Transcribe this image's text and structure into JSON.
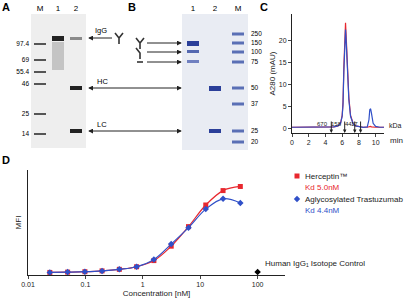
{
  "panels": {
    "A": {
      "label": "A",
      "lanes": [
        "M",
        "1",
        "2"
      ],
      "markers": [
        97.4,
        69,
        55.4,
        46,
        25,
        14
      ]
    },
    "B": {
      "label": "B",
      "lanes": [
        "1",
        "2",
        "M"
      ],
      "markers": [
        250,
        150,
        100,
        75,
        50,
        37,
        25,
        20
      ]
    }
  },
  "band_labels": [
    "IgG",
    "HC",
    "LC"
  ],
  "chart_data": [
    {
      "panel": "C",
      "type": "line",
      "xlabel": "min",
      "ylabel": "A280 (mAU)",
      "x": [
        0,
        1,
        2,
        3,
        4,
        5,
        5.5,
        5.8,
        6.0,
        6.1,
        6.2,
        6.3,
        6.4,
        6.5,
        6.6,
        6.8,
        7.0,
        7.3,
        7.6,
        8,
        8.5,
        9,
        9.2,
        9.3,
        9.4,
        9.5,
        9.7,
        10,
        10.5,
        11
      ],
      "series": [
        {
          "color": "#e8272e",
          "values": [
            0.3,
            0.3,
            0.4,
            0.3,
            0.3,
            0.4,
            0.6,
            1.2,
            3,
            6,
            14,
            22,
            24,
            20,
            14,
            7,
            3,
            1.2,
            0.6,
            0.4,
            0.3,
            0.3,
            0.4,
            0.5,
            0.5,
            0.4,
            0.3,
            0.3,
            0.3,
            0.3
          ]
        },
        {
          "color": "#3050c8",
          "values": [
            0.3,
            0.3,
            0.4,
            0.3,
            0.3,
            0.4,
            0.6,
            1.1,
            2.8,
            5.5,
            13,
            21,
            22.5,
            19,
            13.5,
            6.5,
            2.8,
            1.1,
            0.6,
            0.4,
            0.3,
            0.4,
            2,
            4.3,
            4.5,
            3.5,
            1.2,
            0.5,
            0.3,
            0.3
          ]
        }
      ],
      "xlim": [
        0,
        11
      ],
      "ylim": [
        -1,
        26
      ],
      "xticks": [
        0,
        2,
        4,
        6,
        8,
        10
      ],
      "yticks": [
        0,
        5,
        10,
        15,
        20
      ],
      "annotations": [
        {
          "text": "670",
          "x": 4.7
        },
        {
          "text": "158",
          "x": 6.3
        },
        {
          "text": "44",
          "x": 7.5
        },
        {
          "text": "17",
          "x": 8.2
        },
        {
          "text": "kDa"
        }
      ]
    },
    {
      "panel": "D",
      "type": "scatter",
      "xlabel": "Concentration [nM]",
      "ylabel": "MFI",
      "log": "x",
      "tick_labels": "x",
      "x": [
        0.024,
        0.049,
        0.098,
        0.195,
        0.39,
        0.78,
        1.56,
        3.125,
        6.25,
        12.5,
        25,
        50,
        100
      ],
      "series": [
        {
          "name": "Herceptin™",
          "type": "line",
          "marker": "square",
          "color": "#e8272e",
          "values": [
            0.5,
            0.8,
            1.2,
            2,
            3.5,
            6,
            12,
            26,
            45,
            66,
            80,
            84,
            null
          ]
        },
        {
          "name": "Aglycosylated Trastuzumab",
          "type": "line",
          "marker": "diamond",
          "color": "#3050c8",
          "values": [
            0.5,
            0.8,
            1.2,
            2,
            3.5,
            6,
            13,
            28,
            44,
            62,
            72,
            68,
            null
          ]
        },
        {
          "name": "Human IgG₁ Isotope Control",
          "type": "scatter",
          "marker": "diamond",
          "color": "#000000",
          "values": [
            null,
            null,
            null,
            null,
            null,
            null,
            null,
            null,
            null,
            null,
            null,
            null,
            1
          ]
        }
      ],
      "annotations": [
        "Kd 5.0nM",
        "Kd 4.4nM"
      ],
      "xlim": [
        0.01,
        300
      ],
      "xticks": [
        0.01,
        0.1,
        1,
        10,
        100
      ],
      "ylim": [
        -2,
        100
      ]
    }
  ]
}
